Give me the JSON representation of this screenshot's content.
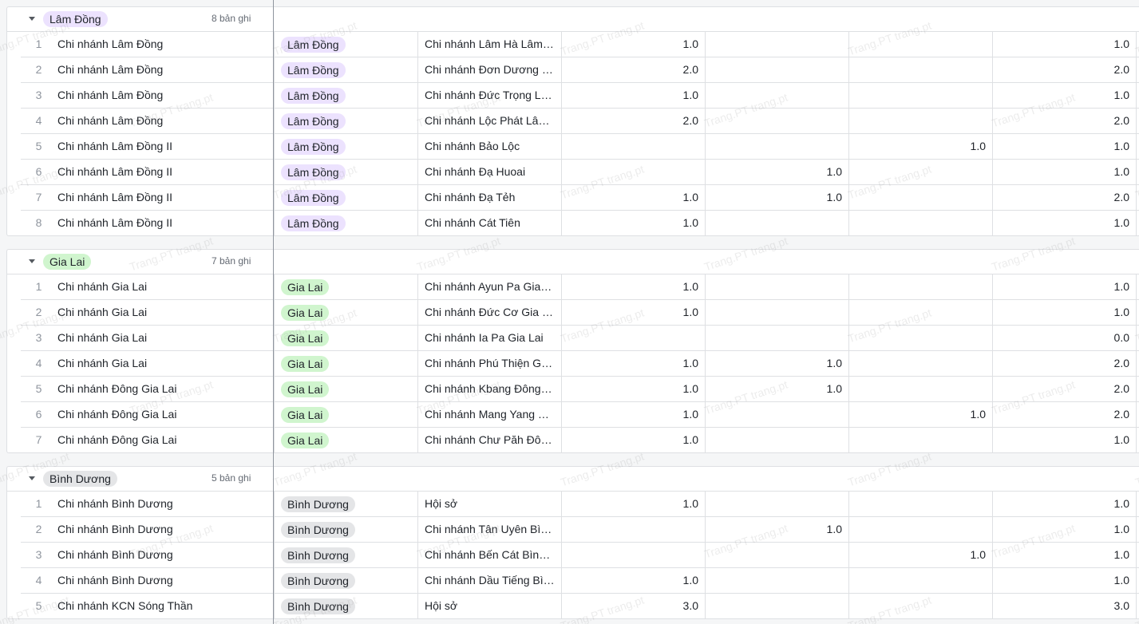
{
  "colors": {
    "lam_dong_tag": "#ece2fe",
    "gia_lai_tag": "#d0f5ce",
    "binh_duong_tag": "#e4e5e7"
  },
  "watermark_text": "Trang.PT trang.pt",
  "groups": [
    {
      "label": "Lâm Đồng",
      "count_label": "8 bản ghi",
      "color": "#ece2fe",
      "rows": [
        {
          "idx": "1",
          "name": "Chi nhánh Lâm Đồng",
          "tag": "Lâm Đồng",
          "branch": "Chi nhánh Lâm Hà Lâm Đồng",
          "n1": "1.0",
          "n2": "",
          "n3": "",
          "n4": "1.0"
        },
        {
          "idx": "2",
          "name": "Chi nhánh Lâm Đồng",
          "tag": "Lâm Đồng",
          "branch": "Chi nhánh Đơn Dương Lâm Đồng",
          "n1": "2.0",
          "n2": "",
          "n3": "",
          "n4": "2.0"
        },
        {
          "idx": "3",
          "name": "Chi nhánh Lâm Đồng",
          "tag": "Lâm Đồng",
          "branch": "Chi nhánh Đức Trọng Lâm Đồng",
          "n1": "1.0",
          "n2": "",
          "n3": "",
          "n4": "1.0"
        },
        {
          "idx": "4",
          "name": "Chi nhánh Lâm Đồng",
          "tag": "Lâm Đồng",
          "branch": "Chi nhánh Lộc Phát Lâm Đồng",
          "n1": "2.0",
          "n2": "",
          "n3": "",
          "n4": "2.0"
        },
        {
          "idx": "5",
          "name": "Chi nhánh Lâm Đồng II",
          "tag": "Lâm Đồng",
          "branch": "Chi nhánh Bảo Lộc",
          "n1": "",
          "n2": "",
          "n3": "1.0",
          "n4": "1.0"
        },
        {
          "idx": "6",
          "name": "Chi nhánh Lâm Đồng II",
          "tag": "Lâm Đồng",
          "branch": "Chi nhánh Đạ Huoai",
          "n1": "",
          "n2": "1.0",
          "n3": "",
          "n4": "1.0"
        },
        {
          "idx": "7",
          "name": "Chi nhánh Lâm Đồng II",
          "tag": "Lâm Đồng",
          "branch": "Chi nhánh Đạ Tẻh",
          "n1": "1.0",
          "n2": "1.0",
          "n3": "",
          "n4": "2.0"
        },
        {
          "idx": "8",
          "name": "Chi nhánh Lâm Đồng II",
          "tag": "Lâm Đồng",
          "branch": "Chi nhánh Cát Tiên",
          "n1": "1.0",
          "n2": "",
          "n3": "",
          "n4": "1.0"
        }
      ]
    },
    {
      "label": "Gia Lai",
      "count_label": "7 bản ghi",
      "color": "#d0f5ce",
      "rows": [
        {
          "idx": "1",
          "name": "Chi nhánh Gia Lai",
          "tag": "Gia Lai",
          "branch": "Chi nhánh Ayun Pa Gia Lai",
          "n1": "1.0",
          "n2": "",
          "n3": "",
          "n4": "1.0"
        },
        {
          "idx": "2",
          "name": "Chi nhánh Gia Lai",
          "tag": "Gia Lai",
          "branch": "Chi nhánh Đức Cơ Gia Lai",
          "n1": "1.0",
          "n2": "",
          "n3": "",
          "n4": "1.0"
        },
        {
          "idx": "3",
          "name": "Chi nhánh Gia Lai",
          "tag": "Gia Lai",
          "branch": "Chi nhánh Ia Pa Gia Lai",
          "n1": "",
          "n2": "",
          "n3": "",
          "n4": "0.0"
        },
        {
          "idx": "4",
          "name": "Chi nhánh Gia Lai",
          "tag": "Gia Lai",
          "branch": "Chi nhánh Phú Thiện Gia Lai",
          "n1": "1.0",
          "n2": "1.0",
          "n3": "",
          "n4": "2.0"
        },
        {
          "idx": "5",
          "name": "Chi nhánh Đông Gia Lai",
          "tag": "Gia Lai",
          "branch": "Chi nhánh Kbang Đông Gia Lai",
          "n1": "1.0",
          "n2": "1.0",
          "n3": "",
          "n4": "2.0"
        },
        {
          "idx": "6",
          "name": "Chi nhánh Đông Gia Lai",
          "tag": "Gia Lai",
          "branch": "Chi nhánh Mang Yang Đông Gia Lai",
          "n1": "1.0",
          "n2": "",
          "n3": "1.0",
          "n4": "2.0"
        },
        {
          "idx": "7",
          "name": "Chi nhánh Đông Gia Lai",
          "tag": "Gia Lai",
          "branch": "Chi nhánh Chư Păh Đông Gia Lai",
          "n1": "1.0",
          "n2": "",
          "n3": "",
          "n4": "1.0"
        }
      ]
    },
    {
      "label": "Bình Dương",
      "count_label": "5 bản ghi",
      "color": "#e4e5e7",
      "rows": [
        {
          "idx": "1",
          "name": "Chi nhánh Bình Dương",
          "tag": "Bình Dương",
          "branch": "Hội sở",
          "n1": "1.0",
          "n2": "",
          "n3": "",
          "n4": "1.0"
        },
        {
          "idx": "2",
          "name": "Chi nhánh Bình Dương",
          "tag": "Bình Dương",
          "branch": "Chi nhánh Tân Uyên Bình Dương",
          "n1": "",
          "n2": "1.0",
          "n3": "",
          "n4": "1.0"
        },
        {
          "idx": "3",
          "name": "Chi nhánh Bình Dương",
          "tag": "Bình Dương",
          "branch": "Chi nhánh Bến Cát Bình Dương",
          "n1": "",
          "n2": "",
          "n3": "1.0",
          "n4": "1.0"
        },
        {
          "idx": "4",
          "name": "Chi nhánh Bình Dương",
          "tag": "Bình Dương",
          "branch": "Chi nhánh Dầu Tiếng Bình Dương",
          "n1": "1.0",
          "n2": "",
          "n3": "",
          "n4": "1.0"
        },
        {
          "idx": "5",
          "name": "Chi nhánh KCN Sóng Thần",
          "tag": "Bình Dương",
          "branch": "Hội sở",
          "n1": "3.0",
          "n2": "",
          "n3": "",
          "n4": "3.0"
        }
      ]
    }
  ]
}
